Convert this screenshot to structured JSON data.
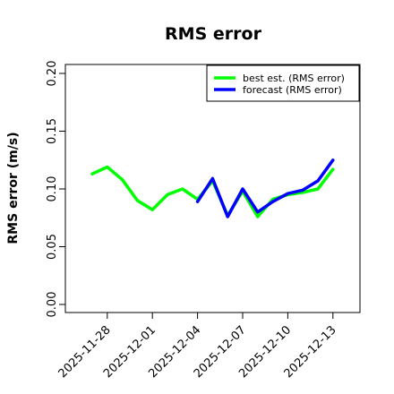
{
  "chart_data": {
    "type": "line",
    "title": "RMS error",
    "xlabel": "",
    "ylabel": "RMS error (m/s)",
    "ylim": [
      0,
      0.21
    ],
    "yticks": [
      "0.00",
      "0.05",
      "0.10",
      "0.15",
      "0.20"
    ],
    "ytick_values": [
      0,
      0.05,
      0.1,
      0.15,
      0.2
    ],
    "x": [
      "2025-11-27",
      "2025-11-28",
      "2025-11-29",
      "2025-11-30",
      "2025-12-01",
      "2025-12-02",
      "2025-12-03",
      "2025-12-04",
      "2025-12-05",
      "2025-12-06",
      "2025-12-07",
      "2025-12-08",
      "2025-12-09",
      "2025-12-10",
      "2025-12-11",
      "2025-12-12",
      "2025-12-13"
    ],
    "xticks": [
      {
        "label": "2025-11-28",
        "color": "#000000"
      },
      {
        "label": "2025-12-01",
        "color": "#000000"
      },
      {
        "label": "2025-12-04",
        "color": "#008000"
      },
      {
        "label": "2025-12-07",
        "color": "#000000"
      },
      {
        "label": "2025-12-10",
        "color": "#000000"
      },
      {
        "label": "2025-12-13",
        "color": "#000000"
      }
    ],
    "series": [
      {
        "name": "best est. (RMS error)",
        "color": "#00ff00",
        "x": [
          "2025-11-27",
          "2025-11-28",
          "2025-11-29",
          "2025-11-30",
          "2025-12-01",
          "2025-12-02",
          "2025-12-03",
          "2025-12-04",
          "2025-12-05",
          "2025-12-06",
          "2025-12-07",
          "2025-12-08",
          "2025-12-09",
          "2025-12-10",
          "2025-12-11",
          "2025-12-12",
          "2025-12-13"
        ],
        "values": [
          0.113,
          0.119,
          0.108,
          0.09,
          0.082,
          0.095,
          0.1,
          0.091,
          0.107,
          0.077,
          0.098,
          0.076,
          0.091,
          0.095,
          0.097,
          0.1,
          0.117
        ]
      },
      {
        "name": "forecast (RMS error)",
        "color": "#0000ff",
        "x": [
          "2025-12-04",
          "2025-12-05",
          "2025-12-06",
          "2025-12-07",
          "2025-12-08",
          "2025-12-09",
          "2025-12-10",
          "2025-12-11",
          "2025-12-12",
          "2025-12-13"
        ],
        "values": [
          0.089,
          0.109,
          0.076,
          0.1,
          0.08,
          0.089,
          0.096,
          0.099,
          0.107,
          0.125
        ]
      }
    ],
    "legend": "top-right",
    "grid": false
  }
}
